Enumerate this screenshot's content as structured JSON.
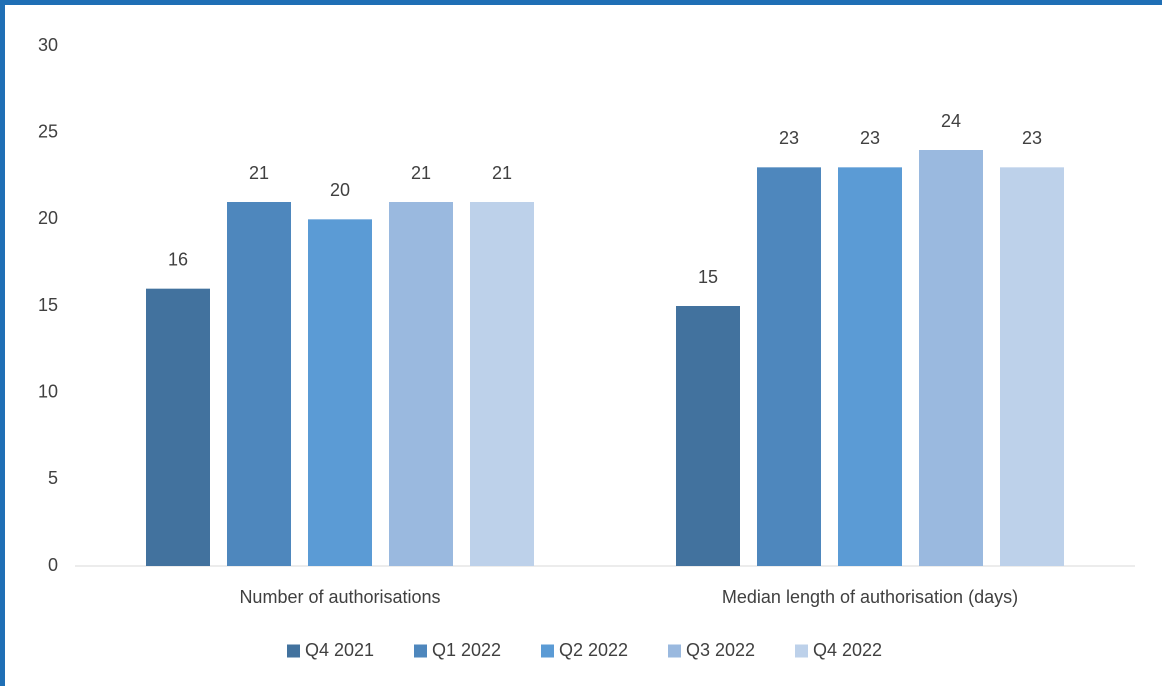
{
  "chart_data": {
    "type": "bar",
    "categories": [
      "Number of authorisations",
      "Median length of authorisation (days)"
    ],
    "series": [
      {
        "name": "Q4 2021",
        "color": "#42729e",
        "values": [
          16,
          15
        ]
      },
      {
        "name": "Q1 2022",
        "color": "#4e87bd",
        "values": [
          21,
          23
        ]
      },
      {
        "name": "Q2 2022",
        "color": "#5b9bd5",
        "values": [
          20,
          23
        ]
      },
      {
        "name": "Q3 2022",
        "color": "#9ab9df",
        "values": [
          21,
          24
        ]
      },
      {
        "name": "Q4 2022",
        "color": "#bdd1ea",
        "values": [
          21,
          23
        ]
      }
    ],
    "ylim": [
      0,
      30
    ],
    "yticks": [
      0,
      5,
      10,
      15,
      20,
      25,
      30
    ],
    "grid": false,
    "legend": "bottom"
  }
}
